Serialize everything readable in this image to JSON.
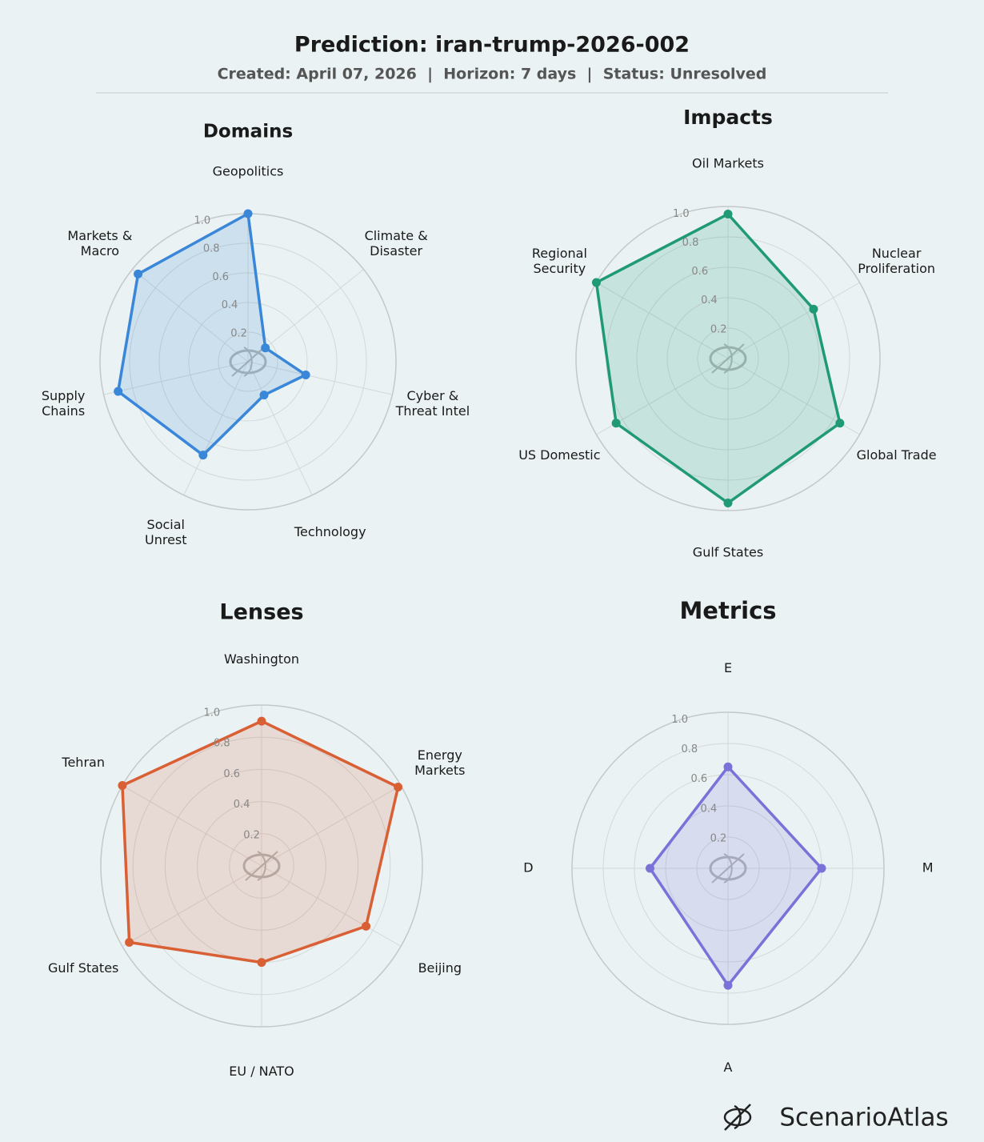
{
  "header": {
    "title": "Prediction: iran-trump-2026-002",
    "subtitle": "Created: April 07, 2026  |  Horizon: 7 days  |  Status: Unresolved"
  },
  "chart_data": [
    {
      "type": "radar",
      "title": "Domains",
      "categories": [
        "Geopolitics",
        "Climate &\nDisaster",
        "Cyber &\nThreat Intel",
        "Technology",
        "Social\nUnrest",
        "Supply\nChains",
        "Markets &\nMacro"
      ],
      "values": [
        1.0,
        0.15,
        0.4,
        0.25,
        0.7,
        0.9,
        0.95
      ],
      "color": "#3a86d8",
      "rlim": [
        0,
        1
      ],
      "rticks": [
        0.2,
        0.4,
        0.6,
        0.8,
        {
          "value": 1,
          "label": "1.0"
        }
      ]
    },
    {
      "type": "radar",
      "title": "Impacts",
      "categories": [
        "Oil Markets",
        "Nuclear\nProliferation",
        "Global Trade",
        "Gulf States",
        "US Domestic",
        "Regional\nSecurity"
      ],
      "values": [
        0.95,
        0.65,
        0.85,
        0.95,
        0.85,
        1.0
      ],
      "color": "#1f9a74",
      "rlim": [
        0,
        1
      ],
      "rticks": [
        0.2,
        0.4,
        0.6,
        0.8,
        {
          "value": 1,
          "label": "1.0"
        }
      ]
    },
    {
      "type": "radar",
      "title": "Lenses",
      "categories": [
        "Washington",
        "Energy\nMarkets",
        "Beijing",
        "EU / NATO",
        "Gulf States",
        "Tehran"
      ],
      "values": [
        0.9,
        0.98,
        0.75,
        0.6,
        0.95,
        1.0
      ],
      "color": "#d95f35",
      "rlim": [
        0,
        1
      ],
      "rticks": [
        0.2,
        0.4,
        0.6,
        0.8,
        {
          "value": 1,
          "label": "1.0"
        }
      ]
    },
    {
      "type": "radar",
      "title": "Metrics",
      "categories": [
        "E",
        "M",
        "A",
        "D"
      ],
      "values": [
        0.65,
        0.6,
        0.75,
        0.5
      ],
      "color": "#7b72d9",
      "rlim": [
        0,
        1
      ],
      "rticks": [
        0.2,
        0.4,
        0.6,
        0.8,
        {
          "value": 1,
          "label": "1.0"
        }
      ]
    }
  ],
  "footer": {
    "brand": "ScenarioAtlas"
  }
}
